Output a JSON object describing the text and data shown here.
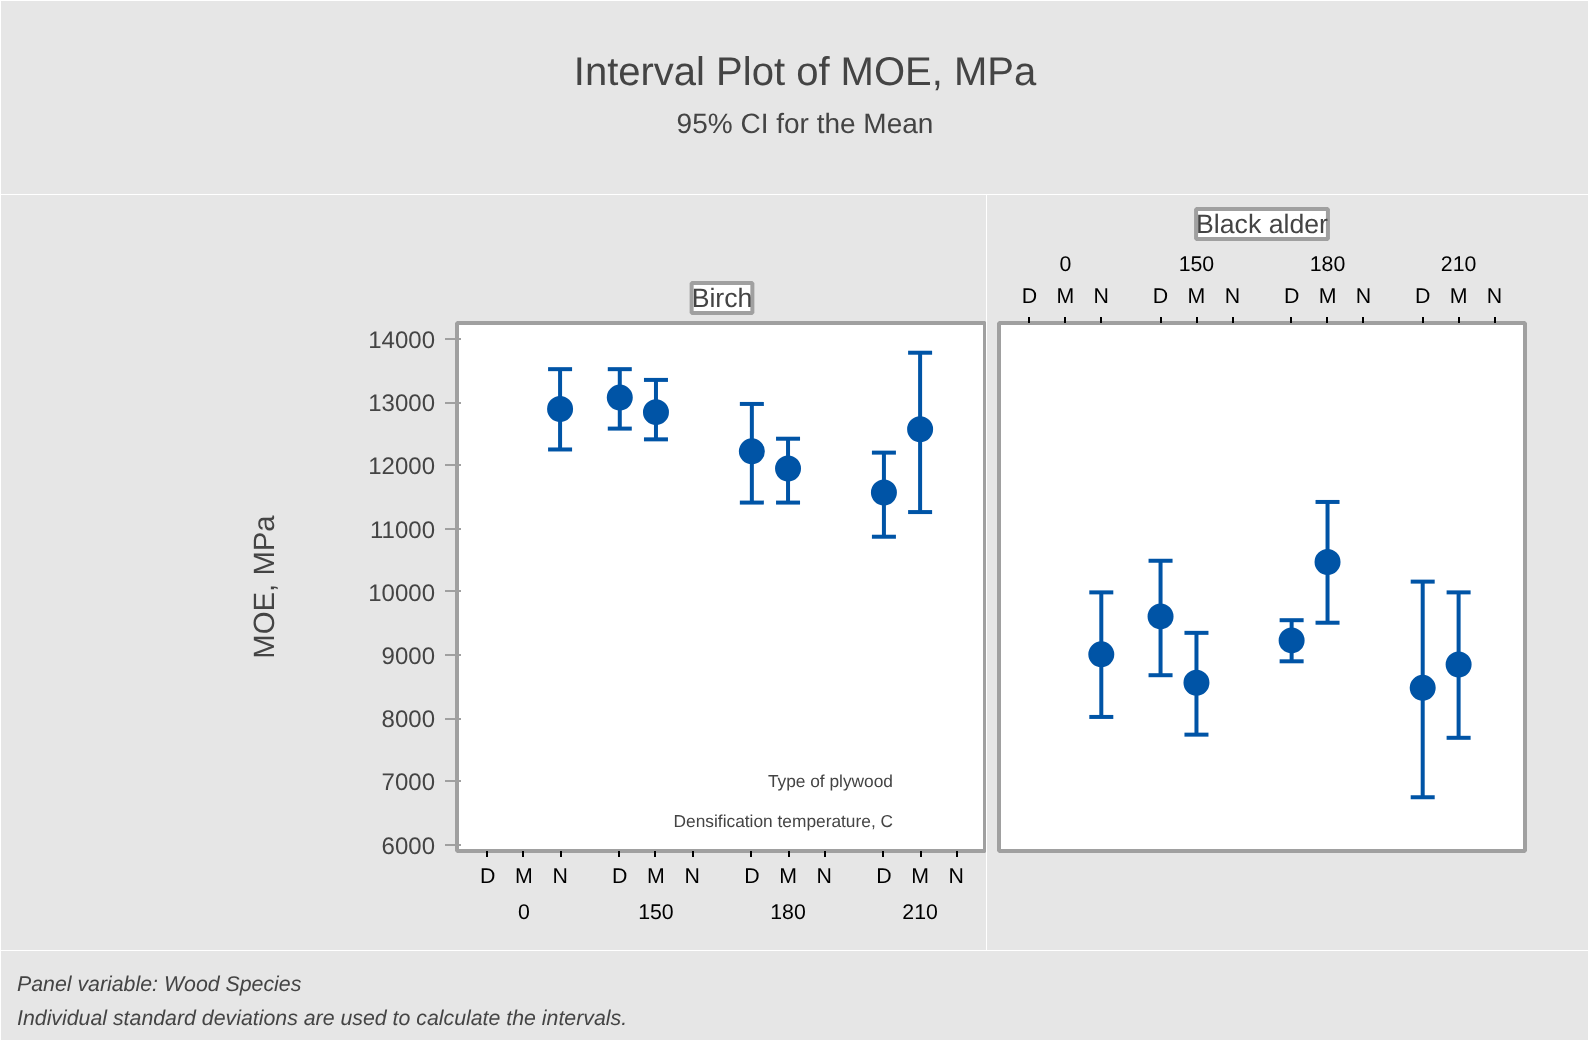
{
  "chart_data": [
    {
      "type": "scatter",
      "title": "Birch",
      "ylabel": "MOE, MPa",
      "xlabel": "Type of plywood",
      "annotations": [
        "Interval Plot of MOE, MPa",
        "95% CI for the Mean",
        "Densification temperature, C",
        "0",
        "150",
        "180",
        "210",
        "Panel variable: Wood Species",
        "Individual standard deviations are used to calculate the intervals."
      ],
      "categories": [
        "D",
        "M",
        "N",
        "D",
        "M",
        "N",
        "D",
        "M",
        "N",
        "D",
        "M",
        "N"
      ],
      "series": [
        {
          "color": "#0054a6",
          "values": [
            null,
            null,
            12890,
            13070,
            12840,
            null,
            12220,
            11950,
            null,
            11570,
            12570,
            null
          ],
          "errors": [
            null,
            null,
            [
              12250,
              13520
            ],
            [
              12580,
              13520
            ],
            [
              12410,
              13350
            ],
            null,
            [
              11410,
              12970
            ],
            [
              11410,
              12420
            ],
            null,
            [
              10870,
              12200
            ],
            [
              11260,
              13780
            ],
            null
          ]
        }
      ],
      "ylim": [
        5900,
        14250
      ],
      "yticks": [
        6000,
        7000,
        8000,
        9000,
        10000,
        11000,
        12000,
        13000,
        14000
      ],
      "grid": false,
      "marker": "circle"
    },
    {
      "type": "scatter",
      "title": "Black alder",
      "tick_labels": "x",
      "annotations": [
        "0",
        "150",
        "180",
        "210"
      ],
      "categories": [
        "D",
        "M",
        "N",
        "D",
        "M",
        "N",
        "D",
        "M",
        "N",
        "D",
        "M",
        "N"
      ],
      "series": [
        {
          "color": "#0054a6",
          "values": [
            null,
            null,
            9010,
            9610,
            8560,
            null,
            9230,
            10470,
            null,
            8480,
            8850,
            null
          ],
          "errors": [
            null,
            null,
            [
              8020,
              9990
            ],
            [
              8680,
              10490
            ],
            [
              7740,
              9350
            ],
            null,
            [
              8900,
              9550
            ],
            [
              9510,
              11420
            ],
            null,
            [
              6750,
              10160
            ],
            [
              7690,
              9990
            ],
            null
          ]
        }
      ],
      "ylim": [
        5900,
        14250
      ],
      "yticks": [
        6000,
        7000,
        8000,
        9000,
        10000,
        11000,
        12000,
        13000,
        14000
      ],
      "grid": false,
      "marker": "circle"
    }
  ]
}
